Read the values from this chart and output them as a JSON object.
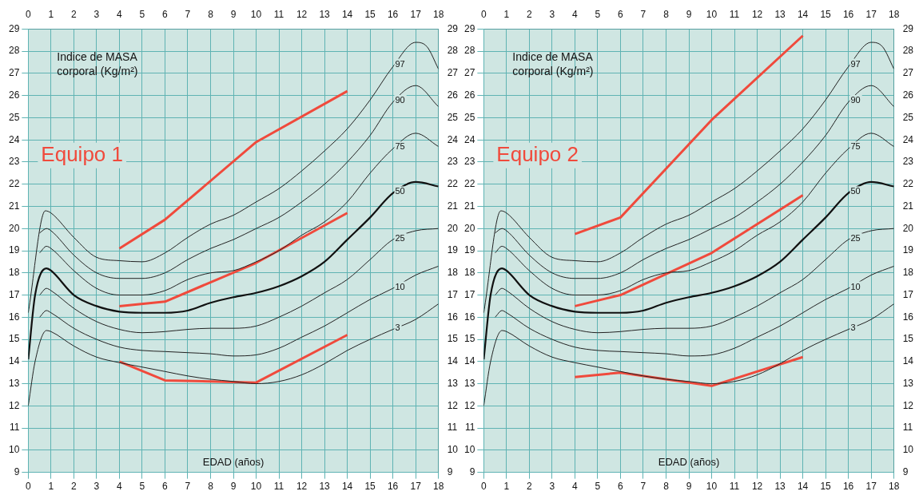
{
  "chart_data": [
    {
      "type": "line",
      "title": "Equipo 1",
      "xlabel": "EDAD (años)",
      "annotations": [
        "Indice de MASA corporal (Kg/m²)"
      ],
      "xlim": [
        0,
        18
      ],
      "xticks": [
        0,
        1,
        2,
        3,
        4,
        5,
        6,
        7,
        8,
        9,
        10,
        11,
        12,
        13,
        14,
        15,
        16,
        17,
        18
      ],
      "x2lim": [
        0,
        18
      ],
      "x2ticks": [
        0,
        1,
        2,
        3,
        4,
        5,
        6,
        7,
        8,
        9,
        10,
        11,
        12,
        13,
        14,
        15,
        16,
        17,
        18
      ],
      "ylim": [
        9,
        29
      ],
      "yticks": [
        9,
        10,
        11,
        12,
        13,
        14,
        15,
        16,
        17,
        18,
        19,
        20,
        21,
        22,
        23,
        24,
        25,
        26,
        27,
        28,
        29
      ],
      "y2lim": [
        9,
        29
      ],
      "y2ticks": [
        9,
        10,
        11,
        12,
        13,
        14,
        15,
        16,
        17,
        18,
        19,
        20,
        21,
        22,
        23,
        24,
        25,
        26,
        27,
        28,
        29
      ],
      "grid": true,
      "marker": "none",
      "series": [
        {
          "name": "97",
          "color": "#222222",
          "x": [
            0,
            0.75,
            1,
            2,
            3,
            4,
            5,
            6,
            7,
            8,
            9,
            10,
            11,
            12,
            13,
            14,
            15,
            16,
            17,
            17.5,
            18
          ],
          "values": [
            16.2,
            20.8,
            20.7,
            19.6,
            18.7,
            18.55,
            18.5,
            18.9,
            19.6,
            20.2,
            20.6,
            21.2,
            21.8,
            22.6,
            23.5,
            24.5,
            25.8,
            27.3,
            28.4,
            28.2,
            27.2
          ]
        },
        {
          "name": "90",
          "color": "#222222",
          "x": [
            0.5,
            0.8,
            1,
            2,
            3,
            4,
            5,
            6,
            7,
            8,
            9,
            10,
            11,
            12,
            13,
            14,
            15,
            16,
            17,
            18
          ],
          "values": [
            19.8,
            20.0,
            19.9,
            18.8,
            18.0,
            17.75,
            17.75,
            18.0,
            18.6,
            19.1,
            19.5,
            20.0,
            20.5,
            21.2,
            22.0,
            23.0,
            24.2,
            25.7,
            26.45,
            25.5
          ]
        },
        {
          "name": "75",
          "color": "#222222",
          "x": [
            0.5,
            0.8,
            1,
            2,
            3,
            4,
            5,
            6,
            7,
            8,
            9,
            10,
            11,
            12,
            13,
            14,
            15,
            16,
            17,
            18
          ],
          "values": [
            18.9,
            19.2,
            19.1,
            18.1,
            17.3,
            17.0,
            17.0,
            17.2,
            17.7,
            18.0,
            18.1,
            18.5,
            19.0,
            19.7,
            20.3,
            21.2,
            22.5,
            23.6,
            24.3,
            23.7
          ]
        },
        {
          "name": "50",
          "color": "#111111",
          "x": [
            0,
            0.3,
            0.8,
            1,
            2,
            3,
            4,
            5,
            6,
            7,
            8,
            9,
            10,
            11,
            12,
            13,
            14,
            15,
            16,
            17,
            18
          ],
          "values": [
            14.1,
            17.0,
            18.2,
            18.1,
            17.0,
            16.5,
            16.25,
            16.2,
            16.2,
            16.3,
            16.65,
            16.9,
            17.1,
            17.4,
            17.85,
            18.5,
            19.5,
            20.5,
            21.6,
            22.1,
            21.9
          ]
        },
        {
          "name": "25",
          "color": "#222222",
          "x": [
            0.5,
            0.8,
            1,
            2,
            3,
            4,
            5,
            6,
            7,
            8,
            9,
            10,
            11,
            12,
            13,
            14,
            15,
            16,
            17,
            18
          ],
          "values": [
            17.0,
            17.3,
            17.2,
            16.4,
            15.8,
            15.45,
            15.3,
            15.35,
            15.45,
            15.5,
            15.5,
            15.6,
            16.0,
            16.5,
            17.1,
            17.7,
            18.6,
            19.5,
            19.9,
            20.0
          ]
        },
        {
          "name": "10",
          "color": "#222222",
          "x": [
            0.5,
            0.8,
            1,
            2,
            3,
            4,
            5,
            6,
            7,
            8,
            9,
            10,
            11,
            12,
            13,
            14,
            15,
            16,
            17,
            18
          ],
          "values": [
            16.0,
            16.3,
            16.2,
            15.5,
            15.0,
            14.65,
            14.5,
            14.45,
            14.4,
            14.35,
            14.25,
            14.3,
            14.6,
            15.1,
            15.6,
            16.2,
            16.8,
            17.3,
            17.9,
            18.3
          ]
        },
        {
          "name": "3",
          "color": "#222222",
          "x": [
            0,
            0.3,
            0.8,
            1,
            2,
            3,
            4,
            5,
            6,
            7,
            8,
            9,
            10,
            11,
            12,
            13,
            14,
            15,
            16,
            17,
            18
          ],
          "values": [
            12.0,
            14.0,
            15.4,
            15.35,
            14.7,
            14.2,
            13.95,
            13.75,
            13.55,
            13.35,
            13.2,
            13.1,
            13.0,
            13.1,
            13.4,
            13.9,
            14.5,
            15.0,
            15.45,
            15.9,
            16.6
          ]
        },
        {
          "color": "#f04a3c",
          "x": [
            4,
            6,
            10,
            14
          ],
          "values": [
            19.1,
            20.4,
            23.9,
            26.2
          ]
        },
        {
          "color": "#f04a3c",
          "x": [
            4,
            6,
            10,
            14
          ],
          "values": [
            16.5,
            16.7,
            18.45,
            20.7
          ]
        },
        {
          "color": "#f04a3c",
          "x": [
            4,
            6,
            10,
            14
          ],
          "values": [
            14.0,
            13.15,
            13.05,
            15.2
          ]
        }
      ]
    },
    {
      "type": "line",
      "title": "Equipo 2",
      "xlabel": "EDAD (años)",
      "annotations": [
        "Indice de MASA corporal (Kg/m²)"
      ],
      "xlim": [
        0,
        18
      ],
      "xticks": [
        0,
        1,
        2,
        3,
        4,
        5,
        6,
        7,
        8,
        9,
        10,
        11,
        12,
        13,
        14,
        15,
        16,
        17,
        18
      ],
      "x2lim": [
        0,
        18
      ],
      "x2ticks": [
        0,
        1,
        2,
        3,
        4,
        5,
        6,
        7,
        8,
        9,
        10,
        11,
        12,
        13,
        14,
        15,
        16,
        17,
        18
      ],
      "ylim": [
        9,
        29
      ],
      "yticks": [
        9,
        10,
        11,
        12,
        13,
        14,
        15,
        16,
        17,
        18,
        19,
        20,
        21,
        22,
        23,
        24,
        25,
        26,
        27,
        28,
        29
      ],
      "y2lim": [
        9,
        29
      ],
      "y2ticks": [
        9,
        10,
        11,
        12,
        13,
        14,
        15,
        16,
        17,
        18,
        19,
        20,
        21,
        22,
        23,
        24,
        25,
        26,
        27,
        28,
        29
      ],
      "grid": true,
      "marker": "none",
      "series": [
        {
          "name": "97",
          "color": "#222222",
          "x": [
            0,
            0.75,
            1,
            2,
            3,
            4,
            5,
            6,
            7,
            8,
            9,
            10,
            11,
            12,
            13,
            14,
            15,
            16,
            17,
            17.5,
            18
          ],
          "values": [
            16.2,
            20.8,
            20.7,
            19.6,
            18.7,
            18.55,
            18.5,
            18.9,
            19.6,
            20.2,
            20.6,
            21.2,
            21.8,
            22.6,
            23.5,
            24.5,
            25.8,
            27.3,
            28.4,
            28.2,
            27.2
          ]
        },
        {
          "name": "90",
          "color": "#222222",
          "x": [
            0.5,
            0.8,
            1,
            2,
            3,
            4,
            5,
            6,
            7,
            8,
            9,
            10,
            11,
            12,
            13,
            14,
            15,
            16,
            17,
            18
          ],
          "values": [
            19.8,
            20.0,
            19.9,
            18.8,
            18.0,
            17.75,
            17.75,
            18.0,
            18.6,
            19.1,
            19.5,
            20.0,
            20.5,
            21.2,
            22.0,
            23.0,
            24.2,
            25.7,
            26.45,
            25.5
          ]
        },
        {
          "name": "75",
          "color": "#222222",
          "x": [
            0.5,
            0.8,
            1,
            2,
            3,
            4,
            5,
            6,
            7,
            8,
            9,
            10,
            11,
            12,
            13,
            14,
            15,
            16,
            17,
            18
          ],
          "values": [
            18.9,
            19.2,
            19.1,
            18.1,
            17.3,
            17.0,
            17.0,
            17.2,
            17.7,
            18.0,
            18.1,
            18.5,
            19.0,
            19.7,
            20.3,
            21.2,
            22.5,
            23.6,
            24.3,
            23.7
          ]
        },
        {
          "name": "50",
          "color": "#111111",
          "x": [
            0,
            0.3,
            0.8,
            1,
            2,
            3,
            4,
            5,
            6,
            7,
            8,
            9,
            10,
            11,
            12,
            13,
            14,
            15,
            16,
            17,
            18
          ],
          "values": [
            14.1,
            17.0,
            18.2,
            18.1,
            17.0,
            16.5,
            16.25,
            16.2,
            16.2,
            16.3,
            16.65,
            16.9,
            17.1,
            17.4,
            17.85,
            18.5,
            19.5,
            20.5,
            21.6,
            22.1,
            21.9
          ]
        },
        {
          "name": "25",
          "color": "#222222",
          "x": [
            0.5,
            0.8,
            1,
            2,
            3,
            4,
            5,
            6,
            7,
            8,
            9,
            10,
            11,
            12,
            13,
            14,
            15,
            16,
            17,
            18
          ],
          "values": [
            17.0,
            17.3,
            17.2,
            16.4,
            15.8,
            15.45,
            15.3,
            15.35,
            15.45,
            15.5,
            15.5,
            15.6,
            16.0,
            16.5,
            17.1,
            17.7,
            18.6,
            19.5,
            19.9,
            20.0
          ]
        },
        {
          "name": "10",
          "color": "#222222",
          "x": [
            0.5,
            0.8,
            1,
            2,
            3,
            4,
            5,
            6,
            7,
            8,
            9,
            10,
            11,
            12,
            13,
            14,
            15,
            16,
            17,
            18
          ],
          "values": [
            16.0,
            16.3,
            16.2,
            15.5,
            15.0,
            14.65,
            14.5,
            14.45,
            14.4,
            14.35,
            14.25,
            14.3,
            14.6,
            15.1,
            15.6,
            16.2,
            16.8,
            17.3,
            17.9,
            18.3
          ]
        },
        {
          "name": "3",
          "color": "#222222",
          "x": [
            0,
            0.3,
            0.8,
            1,
            2,
            3,
            4,
            5,
            6,
            7,
            8,
            9,
            10,
            11,
            12,
            13,
            14,
            15,
            16,
            17,
            18
          ],
          "values": [
            12.0,
            14.0,
            15.4,
            15.35,
            14.7,
            14.2,
            13.95,
            13.75,
            13.55,
            13.35,
            13.2,
            13.1,
            13.0,
            13.1,
            13.4,
            13.9,
            14.5,
            15.0,
            15.45,
            15.9,
            16.6
          ]
        },
        {
          "color": "#f04a3c",
          "x": [
            4,
            6,
            10,
            14
          ],
          "values": [
            19.75,
            20.5,
            24.9,
            28.7
          ]
        },
        {
          "color": "#f04a3c",
          "x": [
            4,
            6,
            10,
            14
          ],
          "values": [
            16.5,
            17.0,
            18.9,
            21.5
          ]
        },
        {
          "color": "#f04a3c",
          "x": [
            4,
            6,
            10,
            14
          ],
          "values": [
            13.3,
            13.5,
            12.9,
            14.2
          ]
        }
      ]
    }
  ]
}
